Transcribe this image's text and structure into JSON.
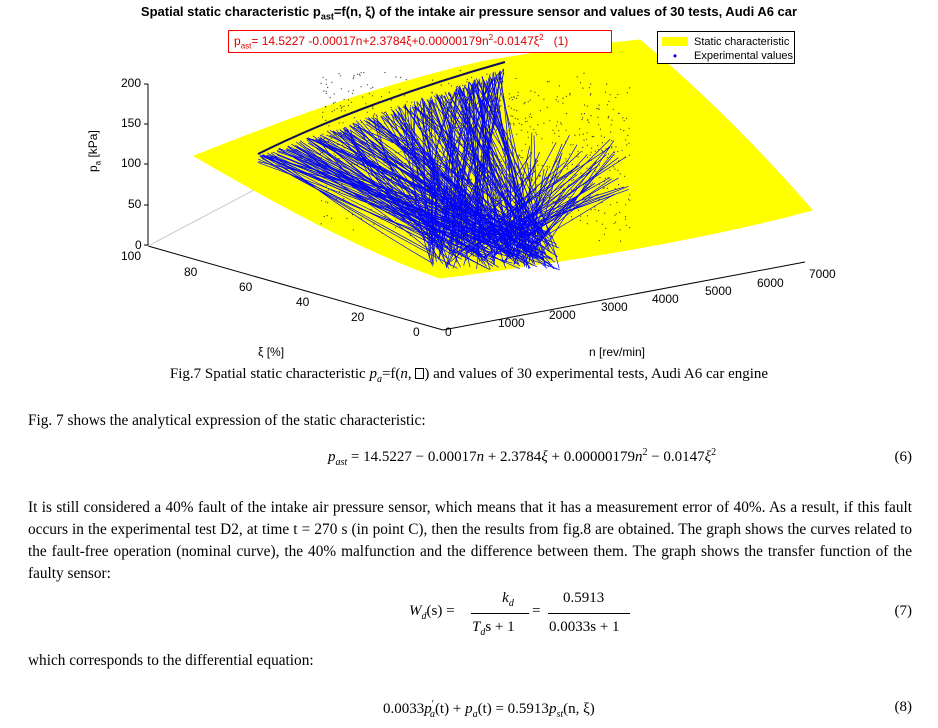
{
  "figure": {
    "title_prefix": "Spatial static characteristic p",
    "title_sub": "ast",
    "title_suffix": "=f(n, ξ) of the intake air pressure sensor and values of 30 tests, Audi A6 car",
    "equation_box": {
      "p": "p",
      "sub": "ast",
      "part1": "= 14.5227 -0.00017n+2.3784ξ+0.00000179n",
      "sup1": "2",
      "part2": "-0.0147ξ",
      "sup2": "2",
      "number": "(1)"
    },
    "legend": {
      "items": [
        {
          "label": "Static characteristic",
          "color": "#ffff00",
          "marker": "patch"
        },
        {
          "label": "Experimental values",
          "color": "#0000ff",
          "marker": "•"
        }
      ]
    },
    "z_axis": {
      "label_main": "p",
      "label_sub": "a",
      "label_unit": " [kPa]",
      "ticks": [
        "0",
        "50",
        "100",
        "150",
        "200"
      ]
    },
    "xi_axis": {
      "label": "ξ [%]",
      "ticks": [
        "100",
        "80",
        "60",
        "40",
        "20",
        "0"
      ]
    },
    "n_axis": {
      "label": "n [rev/min]",
      "ticks": [
        "0",
        "1000",
        "2000",
        "3000",
        "4000",
        "5000",
        "6000",
        "7000"
      ]
    },
    "colors": {
      "surface": "#ffff00",
      "points": "#0000ff",
      "axes": "#000000",
      "eq_box": "#ff0000"
    }
  },
  "caption": {
    "prefix": "Fig.7 Spatial static characteristic ",
    "pa": "p",
    "pa_sub": "a",
    "mid": "=f(",
    "n": "n",
    "comma": ", ",
    "after": ") and values of 30 experimental tests, Audi A6 car engine"
  },
  "text": {
    "p1": "Fig. 7 shows the analytical expression of the static characteristic:",
    "eq6": {
      "lhs": "p",
      "lhs_sub": "ast",
      "rhs1": " = 14.5227 − 0.00017",
      "n1": "n",
      "rhs2": " + 2.3784",
      "xi1": "ξ",
      "rhs3": " + 0.00000179",
      "n2": "n",
      "sup": "2",
      "rhs4": " − 0.0147",
      "xi2": "ξ",
      "sup2": "2",
      "number": "(6)"
    },
    "p2": "It is still considered a 40% fault of the intake air pressure sensor, which means that it has a measurement error of 40%. As a result, if this fault occurs in the experimental test D2, at time t = 270 s (in point C), then the results from fig.8 are obtained. The graph shows the curves related to the fault-free operation (nominal curve), the 40% malfunction and the difference between them. The graph shows the transfer function of the faulty sensor:",
    "eq7": {
      "lhs": "W",
      "lhs_sub": "d",
      "lhs_arg": "(s) =",
      "num1": "k",
      "num1_sub": "d",
      "den1": "T",
      "den1_sub": "d",
      "den1_rest": "s + 1",
      "eq": "=",
      "num2": "0.5913",
      "den2": "0.0033s + 1",
      "number": "(7)"
    },
    "p3": "which corresponds to the differential equation:",
    "eq8": {
      "t1": "0.0033",
      "p1": "p",
      "p1_sup": "′",
      "p1_sub": "a",
      "t2": "(t) + ",
      "p2": "p",
      "p2_sub": "a",
      "t3": "(t) = 0.5913",
      "p3": "p",
      "p3_sub": "st",
      "t4": "(n, ξ)",
      "number": "(8)"
    }
  }
}
